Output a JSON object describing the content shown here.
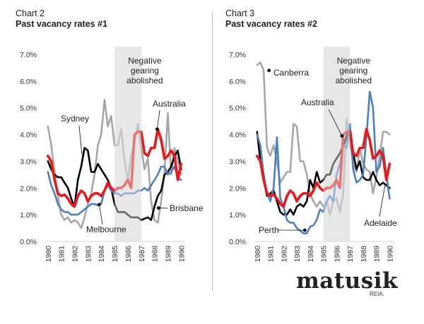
{
  "charts_header": [
    {
      "label": "Chart 2",
      "title": "Past vacancy rates #1"
    },
    {
      "label": "Chart 3",
      "title": "Past vacancy rates #2"
    }
  ],
  "logo": {
    "name": "matusik",
    "sub": "REIA."
  },
  "colors": {
    "australia": "#e8191a",
    "grey": "#a6a6a6",
    "black": "#000000",
    "blue": "#4b7fc0",
    "band": "#e6e6e6"
  },
  "chart_data": [
    {
      "type": "line",
      "title": "Past vacancy rates #1",
      "x_ticks": [
        "1980",
        "1981",
        "1982",
        "1983",
        "1984",
        "1985",
        "1986",
        "1987",
        "1988",
        "1989",
        "1990"
      ],
      "y_ticks": [
        "0.0%",
        "1.0%",
        "2.0%",
        "3.0%",
        "4.0%",
        "5.0%",
        "6.0%",
        "7.0%"
      ],
      "xlim": [
        1979.8,
        1990.3
      ],
      "ylim": [
        0,
        7
      ],
      "shaded_period": [
        1985,
        1987
      ],
      "shaded_label": [
        "Negative",
        "gearing",
        "abolished"
      ],
      "labels": [
        "Sydney",
        "Melbourne",
        "Brisbane",
        "Australia"
      ],
      "series": [
        {
          "name": "Sydney",
          "color": "grey",
          "x": [
            1980,
            1980.25,
            1980.5,
            1980.75,
            1981,
            1981.25,
            1981.5,
            1981.75,
            1982,
            1982.25,
            1982.5,
            1982.75,
            1983,
            1983.25,
            1983.5,
            1983.75,
            1984,
            1984.25,
            1984.5,
            1984.75,
            1985,
            1985.25,
            1985.5,
            1985.75,
            1986,
            1986.25,
            1986.5,
            1986.75,
            1987,
            1987.25,
            1987.5,
            1987.75,
            1988,
            1988.25,
            1988.5,
            1988.75,
            1989,
            1989.25,
            1989.5,
            1989.75,
            1990
          ],
          "y": [
            4.3,
            3.6,
            2.6,
            1.7,
            1.0,
            0.8,
            0.9,
            0.7,
            0.8,
            0.7,
            0.5,
            0.9,
            1.4,
            1.8,
            2.5,
            3.6,
            4.0,
            5.3,
            4.3,
            4.7,
            3.6,
            3.6,
            4.2,
            3.0,
            2.3,
            3.2,
            3.7,
            4.4,
            3.5,
            2.7,
            3.1,
            1.5,
            0.8,
            0.7,
            1.5,
            2.6,
            4.8,
            2.5,
            3.5,
            3.0,
            2.5
          ]
        },
        {
          "name": "Brisbane",
          "color": "black",
          "x": [
            1980,
            1980.25,
            1980.5,
            1980.75,
            1981,
            1981.25,
            1981.5,
            1981.75,
            1982,
            1982.25,
            1982.5,
            1982.75,
            1983,
            1983.25,
            1983.5,
            1983.75,
            1984,
            1984.25,
            1984.5,
            1984.75,
            1985,
            1985.25,
            1985.5,
            1985.75,
            1986,
            1986.25,
            1986.5,
            1986.75,
            1987,
            1987.25,
            1987.5,
            1987.75,
            1988,
            1988.25,
            1988.5,
            1988.75,
            1989,
            1989.25,
            1989.5,
            1989.75,
            1990
          ],
          "y": [
            3.0,
            2.7,
            2.5,
            2.4,
            2.4,
            2.2,
            2.0,
            1.6,
            1.3,
            2.3,
            2.8,
            3.5,
            3.4,
            2.6,
            2.6,
            2.9,
            2.7,
            2.5,
            2.3,
            2.0,
            1.4,
            1.1,
            1.1,
            1.1,
            1.0,
            0.9,
            0.9,
            0.9,
            0.8,
            0.85,
            0.9,
            0.8,
            1.3,
            1.7,
            1.9,
            2.5,
            2.6,
            2.8,
            3.2,
            3.4,
            2.7
          ]
        },
        {
          "name": "Melbourne",
          "color": "blue",
          "x": [
            1980,
            1980.25,
            1980.5,
            1980.75,
            1981,
            1981.25,
            1981.5,
            1981.75,
            1982,
            1982.25,
            1982.5,
            1982.75,
            1983,
            1983.25,
            1983.5,
            1983.75,
            1984,
            1984.25,
            1984.5,
            1984.75,
            1985,
            1985.25,
            1985.5,
            1985.75,
            1986,
            1986.25,
            1986.5,
            1986.75,
            1987,
            1987.25,
            1987.5,
            1987.75,
            1988,
            1988.25,
            1988.5,
            1988.75,
            1989,
            1989.25,
            1989.5,
            1989.75,
            1990
          ],
          "y": [
            2.6,
            2.1,
            1.8,
            1.4,
            1.2,
            1.1,
            1.1,
            1.0,
            1.0,
            1.0,
            1.1,
            1.2,
            1.3,
            1.4,
            1.4,
            1.35,
            1.4,
            1.9,
            2.1,
            1.9,
            1.8,
            1.8,
            1.7,
            1.8,
            1.8,
            1.8,
            1.8,
            1.9,
            1.9,
            2.0,
            1.9,
            2.1,
            2.3,
            2.5,
            2.8,
            2.8,
            2.5,
            2.6,
            2.8,
            2.4,
            2.3
          ]
        },
        {
          "name": "Australia",
          "color": "australia",
          "x": [
            1980,
            1980.25,
            1980.5,
            1980.75,
            1981,
            1981.25,
            1981.5,
            1981.75,
            1982,
            1982.25,
            1982.5,
            1982.75,
            1983,
            1983.25,
            1983.5,
            1983.75,
            1984,
            1984.25,
            1984.5,
            1984.75,
            1985,
            1985.25,
            1985.5,
            1985.75,
            1986,
            1986.25,
            1986.5,
            1986.75,
            1987,
            1987.25,
            1987.5,
            1987.75,
            1988,
            1988.25,
            1988.5,
            1988.75,
            1989,
            1989.25,
            1989.5,
            1989.75,
            1990
          ],
          "y": [
            3.2,
            3.0,
            2.3,
            1.8,
            1.7,
            1.75,
            1.6,
            1.4,
            1.3,
            1.7,
            1.9,
            1.8,
            1.5,
            1.7,
            1.8,
            1.8,
            1.7,
            1.9,
            2.2,
            2.0,
            1.9,
            2.0,
            2.0,
            2.1,
            2.3,
            2.0,
            4.0,
            4.1,
            4.1,
            3.3,
            3.2,
            3.5,
            3.5,
            4.2,
            3.8,
            3.1,
            3.2,
            3.4,
            3.2,
            2.3,
            2.9
          ]
        }
      ]
    },
    {
      "type": "line",
      "title": "Past vacancy rates #2",
      "x_ticks": [
        "1980",
        "1981",
        "1982",
        "1983",
        "1984",
        "1985",
        "1986",
        "1987",
        "1988",
        "1989",
        "1990"
      ],
      "y_ticks": [
        "0.0%",
        "1.0%",
        "2.0%",
        "3.0%",
        "4.0%",
        "5.0%",
        "6.0%",
        "7.0%"
      ],
      "xlim": [
        1979.8,
        1990.3
      ],
      "ylim": [
        0,
        7
      ],
      "shaded_period": [
        1985,
        1987
      ],
      "shaded_label": [
        "Negative",
        "gearing",
        "abolished"
      ],
      "labels": [
        "Canberra",
        "Australia",
        "Perth",
        "Adelaide"
      ],
      "series": [
        {
          "name": "Canberra",
          "color": "grey",
          "x": [
            1980,
            1980.25,
            1980.5,
            1980.75,
            1981,
            1981.25,
            1981.5,
            1981.75,
            1982,
            1982.25,
            1982.5,
            1982.75,
            1983,
            1983.25,
            1983.5,
            1983.75,
            1984,
            1984.25,
            1984.5,
            1984.75,
            1985,
            1985.25,
            1985.5,
            1985.75,
            1986,
            1986.25,
            1986.5,
            1986.75,
            1987,
            1987.25,
            1987.5,
            1987.75,
            1988,
            1988.25,
            1988.5,
            1988.75,
            1989,
            1989.25,
            1989.5,
            1989.75,
            1990
          ],
          "y": [
            6.6,
            6.7,
            6.4,
            3.5,
            3.2,
            3.6,
            3.0,
            2.2,
            2.4,
            2.6,
            2.6,
            4.4,
            4.3,
            3.0,
            3.0,
            2.5,
            1.8,
            1.5,
            1.3,
            1.5,
            1.3,
            1.5,
            1.0,
            1.5,
            1.6,
            1.1,
            1.8,
            4.6,
            3.8,
            2.9,
            2.6,
            3.5,
            2.9,
            2.7,
            2.6,
            1.8,
            2.4,
            3.2,
            4.1,
            4.1,
            4.0
          ]
        },
        {
          "name": "Adelaide",
          "color": "black",
          "x": [
            1980,
            1980.25,
            1980.5,
            1980.75,
            1981,
            1981.25,
            1981.5,
            1981.75,
            1982,
            1982.25,
            1982.5,
            1982.75,
            1983,
            1983.25,
            1983.5,
            1983.75,
            1984,
            1984.25,
            1984.5,
            1984.75,
            1985,
            1985.25,
            1985.5,
            1985.75,
            1986,
            1986.25,
            1986.5,
            1986.75,
            1987,
            1987.25,
            1987.5,
            1987.75,
            1988,
            1988.25,
            1988.5,
            1988.75,
            1989,
            1989.25,
            1989.5,
            1989.75,
            1990
          ],
          "y": [
            4.1,
            3.0,
            2.3,
            1.7,
            1.8,
            1.9,
            1.5,
            1.1,
            1.0,
            1.0,
            1.2,
            1.0,
            1.3,
            1.4,
            1.3,
            1.5,
            2.3,
            2.0,
            2.6,
            2.2,
            2.3,
            2.5,
            2.5,
            2.9,
            3.1,
            3.3,
            3.6,
            3.9,
            4.3,
            3.3,
            2.7,
            3.0,
            2.4,
            2.3,
            2.3,
            2.6,
            2.3,
            2.1,
            2.2,
            2.1,
            2.0
          ]
        },
        {
          "name": "Perth",
          "color": "blue",
          "x": [
            1980,
            1980.25,
            1980.5,
            1980.75,
            1981,
            1981.25,
            1981.5,
            1981.75,
            1982,
            1982.25,
            1982.5,
            1982.75,
            1983,
            1983.25,
            1983.5,
            1983.75,
            1984,
            1984.25,
            1984.5,
            1984.75,
            1985,
            1985.25,
            1985.5,
            1985.75,
            1986,
            1986.25,
            1986.5,
            1986.75,
            1987,
            1987.25,
            1987.5,
            1987.75,
            1988,
            1988.25,
            1988.5,
            1988.75,
            1989,
            1989.25,
            1989.5,
            1989.75,
            1990
          ],
          "y": [
            4.0,
            3.6,
            2.5,
            1.8,
            1.5,
            2.0,
            3.9,
            1.6,
            1.3,
            0.8,
            0.7,
            0.7,
            0.5,
            0.4,
            0.3,
            0.3,
            0.55,
            0.6,
            0.8,
            1.2,
            1.1,
            1.5,
            1.7,
            1.5,
            2.5,
            2.9,
            3.6,
            3.5,
            4.4,
            2.7,
            2.2,
            2.3,
            2.5,
            3.9,
            5.6,
            5.0,
            2.6,
            2.8,
            3.5,
            2.5,
            1.6
          ]
        },
        {
          "name": "Australia",
          "color": "australia",
          "x": [
            1980,
            1980.25,
            1980.5,
            1980.75,
            1981,
            1981.25,
            1981.5,
            1981.75,
            1982,
            1982.25,
            1982.5,
            1982.75,
            1983,
            1983.25,
            1983.5,
            1983.75,
            1984,
            1984.25,
            1984.5,
            1984.75,
            1985,
            1985.25,
            1985.5,
            1985.75,
            1986,
            1986.25,
            1986.5,
            1986.75,
            1987,
            1987.25,
            1987.5,
            1987.75,
            1988,
            1988.25,
            1988.5,
            1988.75,
            1989,
            1989.25,
            1989.5,
            1989.75,
            1990
          ],
          "y": [
            3.2,
            3.0,
            2.3,
            1.8,
            1.7,
            1.75,
            1.6,
            1.4,
            1.3,
            1.7,
            1.9,
            1.8,
            1.5,
            1.7,
            1.8,
            1.8,
            1.7,
            1.9,
            2.2,
            2.0,
            1.9,
            2.0,
            2.0,
            2.1,
            2.3,
            2.0,
            4.0,
            4.1,
            4.1,
            3.3,
            3.2,
            3.5,
            3.5,
            4.2,
            3.8,
            3.1,
            3.2,
            3.4,
            3.2,
            2.3,
            2.9
          ]
        }
      ]
    }
  ]
}
